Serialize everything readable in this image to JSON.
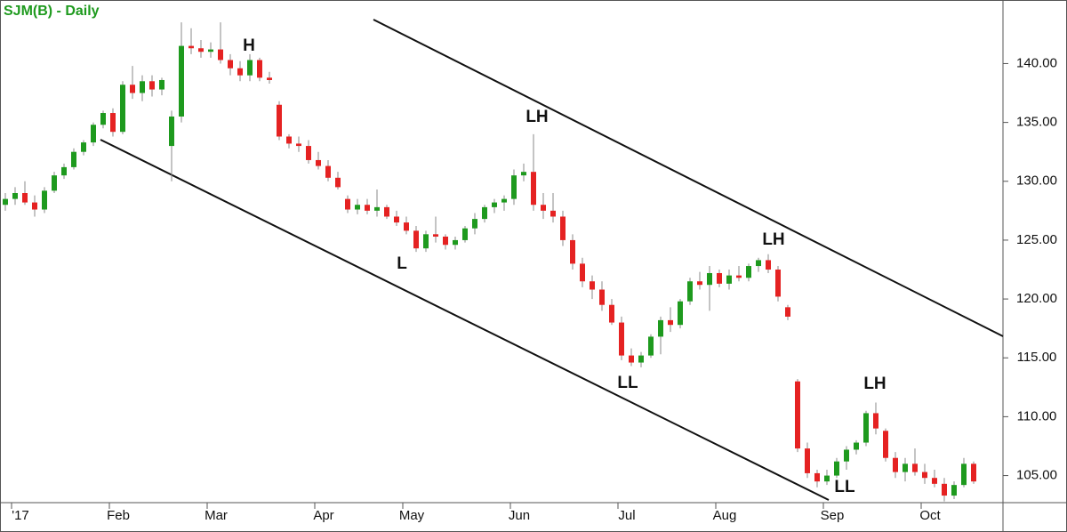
{
  "chart_data": {
    "type": "candlestick",
    "title": "SJM(B) - Daily",
    "up_color": "#1e9a1e",
    "down_color": "#e52222",
    "ylim": [
      102.7,
      145.4
    ],
    "yticks": [
      {
        "value": 105,
        "label": "105.00"
      },
      {
        "value": 110,
        "label": "110.00"
      },
      {
        "value": 115,
        "label": "115.00"
      },
      {
        "value": 120,
        "label": "120.00"
      },
      {
        "value": 125,
        "label": "125.00"
      },
      {
        "value": 130,
        "label": "130.00"
      },
      {
        "value": 135,
        "label": "135.00"
      },
      {
        "value": 140,
        "label": "140.00"
      }
    ],
    "categories": [
      null,
      "'17",
      null,
      null,
      null,
      null,
      null,
      null,
      null,
      null,
      null,
      "Feb",
      null,
      null,
      null,
      null,
      null,
      null,
      null,
      null,
      null,
      "Mar",
      null,
      null,
      null,
      null,
      null,
      null,
      null,
      null,
      null,
      null,
      "Apr",
      null,
      null,
      null,
      null,
      null,
      null,
      null,
      null,
      "May",
      null,
      null,
      null,
      null,
      null,
      null,
      null,
      null,
      null,
      null,
      "Jun",
      null,
      null,
      null,
      null,
      null,
      null,
      null,
      null,
      null,
      null,
      "Jul",
      null,
      null,
      null,
      null,
      null,
      null,
      null,
      null,
      null,
      "Aug",
      null,
      null,
      null,
      null,
      null,
      null,
      null,
      null,
      null,
      null,
      "Sep",
      null,
      null,
      null,
      null,
      null,
      null,
      null,
      null,
      null,
      "Oct",
      null,
      null,
      null,
      null,
      null
    ],
    "ohlc": [
      [
        128,
        129,
        127.5,
        128.5
      ],
      [
        128.5,
        129.5,
        128,
        129
      ],
      [
        129,
        130,
        128,
        128.2
      ],
      [
        128.2,
        128.8,
        127,
        127.6
      ],
      [
        127.6,
        129.5,
        127.3,
        129.2
      ],
      [
        129.2,
        130.8,
        129,
        130.5
      ],
      [
        130.5,
        131.5,
        130.2,
        131.2
      ],
      [
        131.2,
        132.8,
        131,
        132.5
      ],
      [
        132.5,
        133.5,
        132.2,
        133.3
      ],
      [
        133.3,
        135,
        133,
        134.8
      ],
      [
        134.8,
        136,
        134.5,
        135.8
      ],
      [
        135.8,
        136.2,
        133.8,
        134.2
      ],
      [
        134.2,
        138.5,
        134,
        138.2
      ],
      [
        138.2,
        139.8,
        137,
        137.5
      ],
      [
        137.5,
        139,
        136.8,
        138.5
      ],
      [
        138.5,
        139,
        137.2,
        137.8
      ],
      [
        137.8,
        138.8,
        137.3,
        138.6
      ],
      [
        133,
        136,
        130,
        135.5
      ],
      [
        135.5,
        143.5,
        135,
        141.5
      ],
      [
        141.5,
        143,
        140.8,
        141.3
      ],
      [
        141.3,
        142,
        140.5,
        141
      ],
      [
        141,
        141.8,
        140.5,
        141.2
      ],
      [
        141.2,
        143.5,
        140,
        140.3
      ],
      [
        140.3,
        140.8,
        139,
        139.6
      ],
      [
        139.6,
        140.2,
        138.5,
        139
      ],
      [
        139,
        140.8,
        138.5,
        140.3
      ],
      [
        140.3,
        140.5,
        138.5,
        138.8
      ],
      [
        138.8,
        139.3,
        138.3,
        138.6
      ],
      [
        136.5,
        136.8,
        133.5,
        133.8
      ],
      [
        133.8,
        134,
        132.8,
        133.2
      ],
      [
        133.2,
        133.8,
        132.5,
        133
      ],
      [
        133,
        133.5,
        131.5,
        131.8
      ],
      [
        131.8,
        132.5,
        131,
        131.3
      ],
      [
        131.3,
        131.8,
        130,
        130.3
      ],
      [
        130.3,
        130.8,
        129.3,
        129.5
      ],
      [
        128.5,
        128.8,
        127.3,
        127.6
      ],
      [
        127.6,
        128.5,
        127.2,
        128
      ],
      [
        128,
        128.5,
        127.2,
        127.5
      ],
      [
        127.5,
        129.3,
        127,
        127.8
      ],
      [
        127.8,
        128,
        126.8,
        127
      ],
      [
        127,
        127.5,
        126.2,
        126.5
      ],
      [
        126.5,
        127,
        125.5,
        125.8
      ],
      [
        125.8,
        126.2,
        124,
        124.3
      ],
      [
        124.3,
        125.8,
        124,
        125.5
      ],
      [
        125.5,
        127,
        124.8,
        125.3
      ],
      [
        125.3,
        125.5,
        124.2,
        124.6
      ],
      [
        124.6,
        125.3,
        124.2,
        125
      ],
      [
        125,
        126.2,
        124.8,
        126
      ],
      [
        126,
        127.3,
        125.5,
        126.8
      ],
      [
        126.8,
        128,
        126.5,
        127.8
      ],
      [
        127.8,
        128.5,
        127.3,
        128.2
      ],
      [
        128.2,
        128.8,
        127.5,
        128.5
      ],
      [
        128.5,
        131,
        128,
        130.5
      ],
      [
        130.5,
        131.5,
        130,
        130.8
      ],
      [
        130.8,
        134,
        127.5,
        128
      ],
      [
        128,
        129,
        126.8,
        127.5
      ],
      [
        127.5,
        129,
        126.5,
        127
      ],
      [
        127,
        127.5,
        124.5,
        125
      ],
      [
        125,
        125.5,
        122.5,
        123
      ],
      [
        123,
        123.5,
        121,
        121.5
      ],
      [
        121.5,
        122,
        120,
        120.8
      ],
      [
        120.8,
        121.5,
        119,
        119.5
      ],
      [
        119.5,
        120,
        117.8,
        118
      ],
      [
        118,
        118.5,
        114.8,
        115.2
      ],
      [
        115.2,
        115.8,
        114.3,
        114.6
      ],
      [
        114.6,
        115.5,
        114.2,
        115.2
      ],
      [
        115.2,
        117,
        115,
        116.8
      ],
      [
        116.8,
        118.5,
        115.3,
        118.2
      ],
      [
        118.2,
        119.3,
        117.2,
        117.8
      ],
      [
        117.8,
        120,
        117.5,
        119.8
      ],
      [
        119.8,
        121.8,
        119.5,
        121.5
      ],
      [
        121.5,
        122.3,
        120.8,
        121.2
      ],
      [
        121.2,
        122.8,
        119,
        122.2
      ],
      [
        122.2,
        122.5,
        121,
        121.3
      ],
      [
        121.3,
        122.5,
        120.8,
        122
      ],
      [
        122,
        122.8,
        121.5,
        121.8
      ],
      [
        121.8,
        123,
        121.5,
        122.8
      ],
      [
        122.8,
        123.5,
        122.3,
        123.3
      ],
      [
        123.3,
        123.8,
        122.2,
        122.5
      ],
      [
        122.5,
        122.8,
        119.8,
        120.2
      ],
      [
        119.3,
        119.5,
        118.2,
        118.5
      ],
      [
        113,
        113.2,
        107,
        107.3
      ],
      [
        107.3,
        107.8,
        104.8,
        105.2
      ],
      [
        105.2,
        105.5,
        104,
        104.5
      ],
      [
        104.5,
        105.5,
        104.2,
        105
      ],
      [
        105,
        106.5,
        104.8,
        106.2
      ],
      [
        106.2,
        107.5,
        105.5,
        107.2
      ],
      [
        107.2,
        108,
        106.8,
        107.8
      ],
      [
        107.8,
        110.5,
        107.5,
        110.3
      ],
      [
        110.3,
        111.2,
        108.5,
        109
      ],
      [
        108.8,
        109,
        106.2,
        106.5
      ],
      [
        106.5,
        107,
        104.8,
        105.3
      ],
      [
        105.3,
        106.5,
        104.5,
        106
      ],
      [
        106,
        107.3,
        105,
        105.3
      ],
      [
        105.3,
        106,
        104.3,
        104.8
      ],
      [
        104.8,
        105.5,
        104,
        104.3
      ],
      [
        104.3,
        104.8,
        102.8,
        103.3
      ],
      [
        103.3,
        104.5,
        103,
        104.2
      ],
      [
        104.2,
        106.5,
        104,
        106
      ],
      [
        106,
        106.2,
        104.3,
        104.5
      ]
    ],
    "annotations": [
      "H",
      "L",
      "LH",
      "LL",
      "LH",
      "LL",
      "LH"
    ]
  }
}
